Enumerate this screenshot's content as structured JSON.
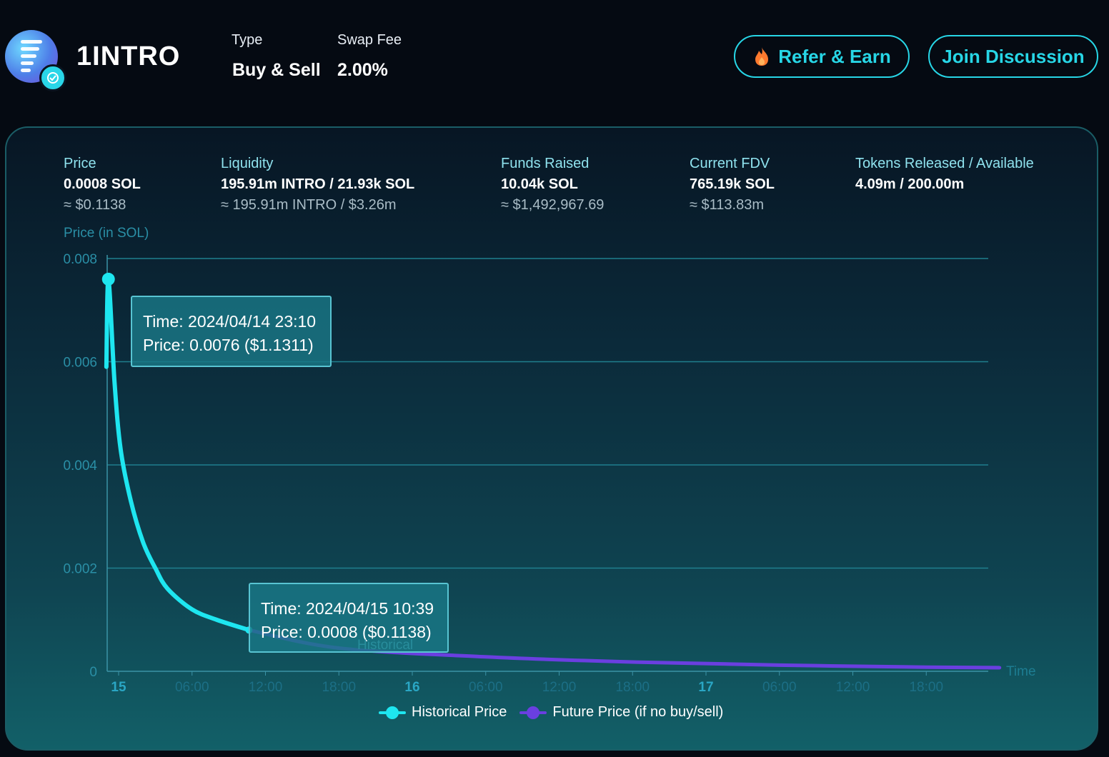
{
  "header": {
    "token_name": "1INTRO",
    "type_label": "Type",
    "type_value": "Buy & Sell",
    "fee_label": "Swap Fee",
    "fee_value": "2.00%",
    "refer_button": "Refer & Earn",
    "join_button": "Join Discussion",
    "logo_icon": "stacked-bars-logo-icon",
    "verified_icon": "verified-badge-icon",
    "refer_icon": "flame-icon"
  },
  "stats": [
    {
      "label": "Price",
      "value": "0.0008 SOL",
      "sub": "≈ $0.1138"
    },
    {
      "label": "Liquidity",
      "value": "195.91m INTRO / 21.93k SOL",
      "sub": "≈ 195.91m INTRO / $3.26m"
    },
    {
      "label": "Funds Raised",
      "value": "10.04k SOL",
      "sub": "≈ $1,492,967.69"
    },
    {
      "label": "Current FDV",
      "value": "765.19k SOL",
      "sub": "≈ $113.83m"
    },
    {
      "label": "Tokens Released / Available",
      "value": "4.09m / 200.00m",
      "sub": ""
    }
  ],
  "tooltips": {
    "top": {
      "time": "Time: 2024/04/14 23:10",
      "price": "Price: 0.0076 ($1.1311)"
    },
    "bottom": {
      "time": "Time: 2024/04/15 10:39",
      "price": "Price: 0.0008 ($0.1138)",
      "ghost": "Historical"
    }
  },
  "colors": {
    "accent": "#27d6e6",
    "historical": "#1ee6f0",
    "future": "#6a3fe0",
    "flame": "#ff7a2e"
  },
  "chart_data": {
    "type": "line",
    "ylabel": "Price (in SOL)",
    "xlabel": "Time",
    "ylim": [
      0,
      0.008
    ],
    "yticks": [
      0,
      0.002,
      0.004,
      0.006,
      0.008
    ],
    "ytick_labels": [
      "0",
      "0.002",
      "0.004",
      "0.006",
      "0.008"
    ],
    "xlim": [
      "2024-04-14T23:00",
      "2024-04-17T23:59"
    ],
    "xticks": [
      {
        "t": "2024-04-15T00:00",
        "label": "15",
        "major": true
      },
      {
        "t": "2024-04-15T06:00",
        "label": "06:00",
        "major": false
      },
      {
        "t": "2024-04-15T12:00",
        "label": "12:00",
        "major": false
      },
      {
        "t": "2024-04-15T18:00",
        "label": "18:00",
        "major": false
      },
      {
        "t": "2024-04-16T00:00",
        "label": "16",
        "major": true
      },
      {
        "t": "2024-04-16T06:00",
        "label": "06:00",
        "major": false
      },
      {
        "t": "2024-04-16T12:00",
        "label": "12:00",
        "major": false
      },
      {
        "t": "2024-04-16T18:00",
        "label": "18:00",
        "major": false
      },
      {
        "t": "2024-04-17T00:00",
        "label": "17",
        "major": true
      },
      {
        "t": "2024-04-17T06:00",
        "label": "06:00",
        "major": false
      },
      {
        "t": "2024-04-17T12:00",
        "label": "12:00",
        "major": false
      },
      {
        "t": "2024-04-17T18:00",
        "label": "18:00",
        "major": false
      }
    ],
    "grid": true,
    "legend": "bottom-center",
    "series": [
      {
        "name": "Historical Price",
        "points": [
          [
            "2024-04-14T23:00",
            0.0059
          ],
          [
            "2024-04-14T23:10",
            0.0076
          ],
          [
            "2024-04-14T23:40",
            0.0056
          ],
          [
            "2024-04-15T00:10",
            0.0043
          ],
          [
            "2024-04-15T01:00",
            0.0033
          ],
          [
            "2024-04-15T02:00",
            0.0025
          ],
          [
            "2024-04-15T03:00",
            0.002
          ],
          [
            "2024-04-15T04:00",
            0.0016
          ],
          [
            "2024-04-15T06:00",
            0.0012
          ],
          [
            "2024-04-15T08:00",
            0.001
          ],
          [
            "2024-04-15T10:39",
            0.0008
          ]
        ]
      },
      {
        "name": "Future Price (if no buy/sell)",
        "points": [
          [
            "2024-04-15T10:39",
            0.0008
          ],
          [
            "2024-04-15T18:00",
            0.00045
          ],
          [
            "2024-04-16T06:00",
            0.00028
          ],
          [
            "2024-04-16T18:00",
            0.00018
          ],
          [
            "2024-04-17T06:00",
            0.00012
          ],
          [
            "2024-04-17T18:00",
            8e-05
          ],
          [
            "2024-04-17T23:59",
            7e-05
          ]
        ]
      }
    ]
  }
}
